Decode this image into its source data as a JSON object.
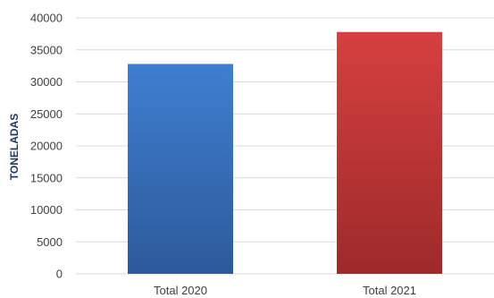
{
  "chart_data": {
    "type": "bar",
    "categories": [
      "Total 2020",
      "Total 2021"
    ],
    "values": [
      32800,
      37800
    ],
    "title": "",
    "xlabel": "",
    "ylabel": "TONELADAS",
    "ylim": [
      0,
      40000
    ],
    "yticks": [
      0,
      5000,
      10000,
      15000,
      20000,
      25000,
      30000,
      35000,
      40000
    ],
    "grid": true,
    "bar_colors": [
      {
        "top": "#3f7fd0",
        "bottom": "#2c5a9a"
      },
      {
        "top": "#d64040",
        "bottom": "#9e2a2a"
      }
    ],
    "gridline_color": "#d9d9d9"
  }
}
